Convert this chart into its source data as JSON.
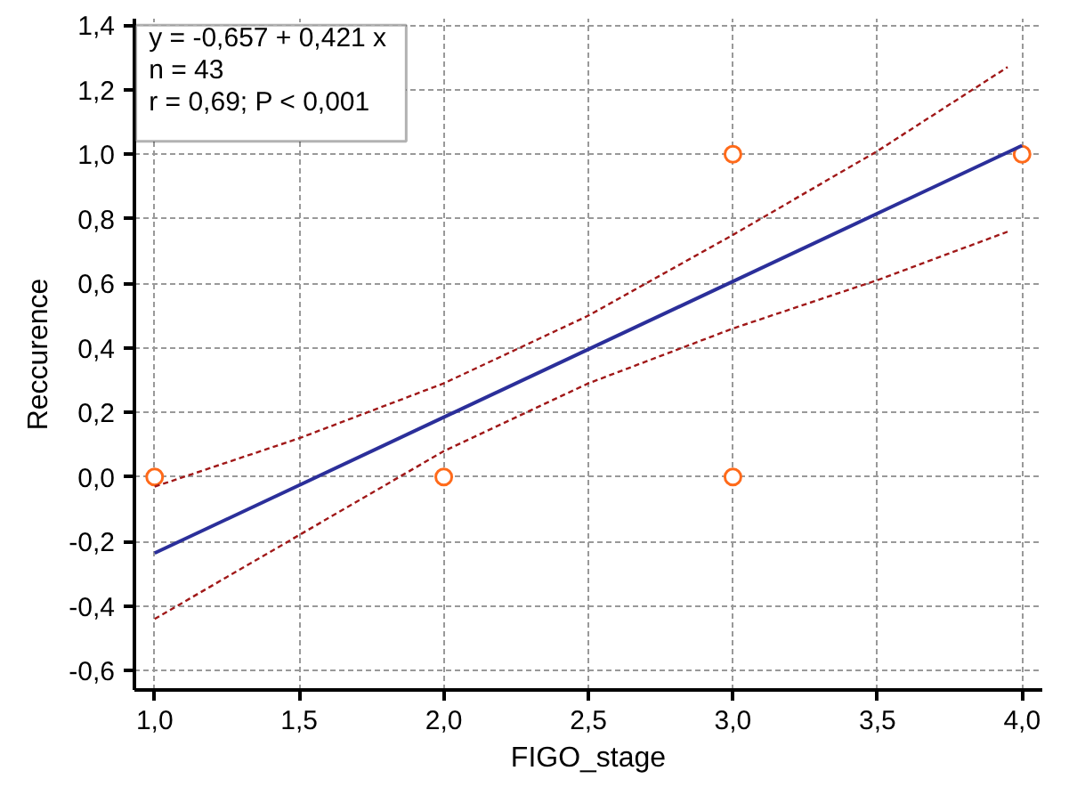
{
  "chart_data": {
    "type": "scatter",
    "xlabel": "FIGO_stage",
    "ylabel": "Reccurence",
    "xlim": [
      0.93,
      4.07
    ],
    "ylim": [
      -0.66,
      1.42
    ],
    "xticks": [
      {
        "value": 1.0,
        "label": "1,0"
      },
      {
        "value": 1.5,
        "label": "1,5"
      },
      {
        "value": 2.0,
        "label": "2,0"
      },
      {
        "value": 2.5,
        "label": "2,5"
      },
      {
        "value": 3.0,
        "label": "3,0"
      },
      {
        "value": 3.5,
        "label": "3,5"
      },
      {
        "value": 4.0,
        "label": "4,0"
      }
    ],
    "yticks": [
      {
        "value": -0.6,
        "label": "-0,6"
      },
      {
        "value": -0.4,
        "label": "-0,4"
      },
      {
        "value": -0.2,
        "label": "-0,2"
      },
      {
        "value": 0.0,
        "label": "0,0"
      },
      {
        "value": 0.2,
        "label": "0,2"
      },
      {
        "value": 0.4,
        "label": "0,4"
      },
      {
        "value": 0.6,
        "label": "0,6"
      },
      {
        "value": 0.8,
        "label": "0,8"
      },
      {
        "value": 1.0,
        "label": "1,0"
      },
      {
        "value": 1.2,
        "label": "1,2"
      },
      {
        "value": 1.4,
        "label": "1,4"
      }
    ],
    "grid": true,
    "series": [
      {
        "color": "#ff6a1a",
        "marker": "circle",
        "x": [
          1,
          2,
          3,
          3,
          4
        ],
        "values": [
          0,
          0,
          0,
          1,
          1
        ]
      },
      {
        "type": "line",
        "color": "#2b2f9a",
        "line_style": "solid",
        "x": [
          1,
          4
        ],
        "values": [
          -0.236,
          1.027
        ]
      },
      {
        "type": "line",
        "color": "#a01818",
        "line_style": "dashed",
        "x": [
          1,
          1.5,
          2,
          2.5,
          3,
          3.5,
          3.95
        ],
        "values": [
          -0.03,
          0.12,
          0.29,
          0.5,
          0.75,
          1.01,
          1.27
        ]
      },
      {
        "type": "line",
        "color": "#a01818",
        "line_style": "dashed",
        "x": [
          1,
          1.5,
          2,
          2.5,
          3,
          3.5,
          3.95
        ],
        "values": [
          -0.44,
          -0.18,
          0.08,
          0.29,
          0.46,
          0.61,
          0.76
        ]
      }
    ],
    "annotations": [
      "y = -0,657  +  0,421  x",
      "n = 43",
      "r = 0,69; P < 0,001"
    ]
  }
}
